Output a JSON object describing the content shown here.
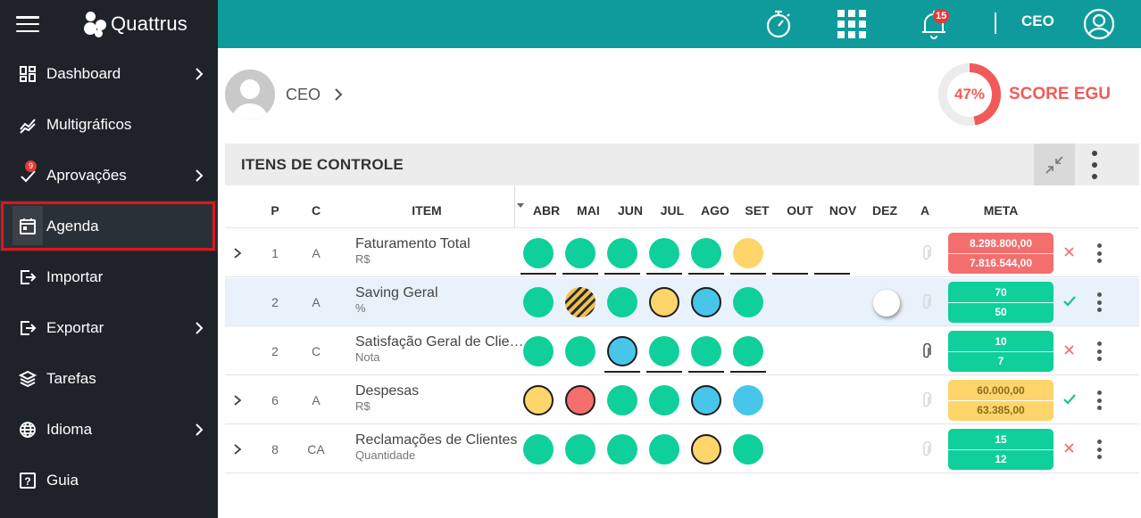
{
  "brand": {
    "name": "Quattrus"
  },
  "sidebar": {
    "items": [
      {
        "label": "Dashboard",
        "icon": "dashboard-icon",
        "chevron": true
      },
      {
        "label": "Multigráficos",
        "icon": "trend-icon",
        "chevron": false
      },
      {
        "label": "Aprovações",
        "icon": "approval-icon",
        "chevron": true,
        "badge": "9"
      },
      {
        "label": "Agenda",
        "icon": "calendar-icon",
        "chevron": false,
        "active": true
      },
      {
        "label": "Importar",
        "icon": "import-icon",
        "chevron": false
      },
      {
        "label": "Exportar",
        "icon": "export-icon",
        "chevron": true
      },
      {
        "label": "Tarefas",
        "icon": "layers-icon",
        "chevron": false
      },
      {
        "label": "Idioma",
        "icon": "globe-icon",
        "chevron": true
      },
      {
        "label": "Guia",
        "icon": "help-icon",
        "chevron": false
      }
    ]
  },
  "topbar": {
    "notifications_badge": "15",
    "user_label": "CEO",
    "accent": "#0f9b9c"
  },
  "user": {
    "name": "CEO"
  },
  "score": {
    "value": "47%",
    "fraction": 0.47,
    "label": "SCORE EGU",
    "color": "#f25a5a"
  },
  "panel": {
    "title": "ITENS DE CONTROLE"
  },
  "table": {
    "headers": {
      "p": "P",
      "c": "C",
      "item": "ITEM",
      "months": [
        "ABR",
        "MAI",
        "JUN",
        "JUL",
        "AGO",
        "SET",
        "OUT",
        "NOV",
        "DEZ"
      ],
      "a": "A",
      "meta": "META"
    },
    "rows": [
      {
        "expandable": true,
        "p": "1",
        "c": "A",
        "name": "Faturamento Total",
        "unit": "R$",
        "months": [
          "green",
          "green",
          "green",
          "green",
          "green",
          "yellow",
          null,
          null,
          null
        ],
        "outlined": [
          false,
          false,
          false,
          false,
          false,
          false,
          false,
          false,
          false
        ],
        "underlined": [
          true,
          true,
          true,
          true,
          true,
          true,
          true,
          true,
          false
        ],
        "attachment": "faint",
        "meta_top": "8.298.800,00",
        "meta_bottom": "7.816.544,00",
        "meta_color": "red",
        "status": "cross",
        "highlight": false,
        "toggle": false
      },
      {
        "expandable": false,
        "p": "2",
        "c": "A",
        "name": "Saving Geral",
        "unit": "%",
        "months": [
          "green",
          "striped",
          "green",
          "yellow",
          "blue",
          "green",
          null,
          null,
          null
        ],
        "outlined": [
          false,
          false,
          false,
          true,
          true,
          false,
          false,
          false,
          false
        ],
        "underlined": [
          false,
          false,
          false,
          false,
          false,
          false,
          false,
          false,
          false
        ],
        "attachment": "faint",
        "meta_top": "70",
        "meta_bottom": "50",
        "meta_color": "green",
        "status": "check",
        "highlight": true,
        "toggle": true
      },
      {
        "expandable": false,
        "p": "2",
        "c": "C",
        "name": "Satisfação Geral de Clientes",
        "unit": "Nota",
        "months": [
          "green",
          "green",
          "blue",
          "green",
          "green",
          "green",
          null,
          null,
          null
        ],
        "outlined": [
          false,
          false,
          true,
          false,
          false,
          false,
          false,
          false,
          false
        ],
        "underlined": [
          false,
          false,
          true,
          true,
          true,
          true,
          false,
          false,
          false
        ],
        "attachment": "dark",
        "meta_top": "10",
        "meta_bottom": "7",
        "meta_color": "green",
        "status": "cross",
        "highlight": false,
        "toggle": false
      },
      {
        "expandable": true,
        "p": "6",
        "c": "A",
        "name": "Despesas",
        "unit": "R$",
        "months": [
          "yellow",
          "red",
          "green",
          "green",
          "blue",
          "blue",
          null,
          null,
          null
        ],
        "outlined": [
          true,
          true,
          false,
          false,
          true,
          false,
          false,
          false,
          false
        ],
        "underlined": [
          false,
          false,
          false,
          false,
          false,
          false,
          false,
          false,
          false
        ],
        "attachment": "faint",
        "meta_top": "60.000,00",
        "meta_bottom": "63.385,00",
        "meta_color": "yellow",
        "status": "check",
        "highlight": false,
        "toggle": false
      },
      {
        "expandable": true,
        "p": "8",
        "c": "CA",
        "name": "Reclamações de Clientes",
        "unit": "Quantidade",
        "months": [
          "green",
          "green",
          "green",
          "green",
          "yellow",
          "green",
          null,
          null,
          null
        ],
        "outlined": [
          false,
          false,
          false,
          false,
          true,
          false,
          false,
          false,
          false
        ],
        "underlined": [
          false,
          false,
          false,
          false,
          false,
          false,
          false,
          false,
          false
        ],
        "attachment": "faint",
        "meta_top": "15",
        "meta_bottom": "12",
        "meta_color": "green",
        "status": "cross",
        "highlight": false,
        "toggle": false
      }
    ]
  },
  "colors": {
    "green": "#0fcf9b",
    "yellow": "#fdd56b",
    "red": "#f46e6e",
    "blue": "#47c6ea",
    "sidebar_bg": "#1e2329",
    "active_outline": "#e0141e"
  }
}
